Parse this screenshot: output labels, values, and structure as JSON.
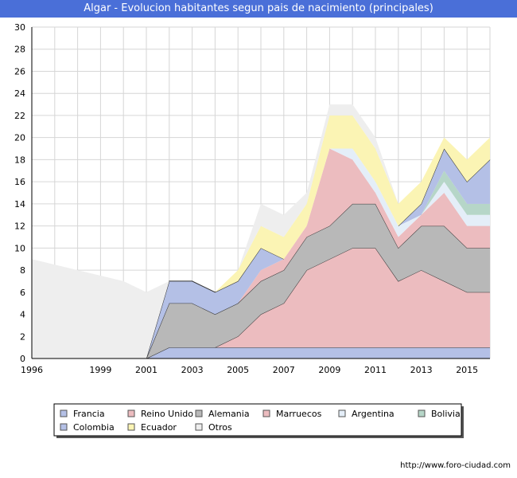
{
  "title": "Algar - Evolucion habitantes segun pais de nacimiento (principales)",
  "source": "http://www.foro-ciudad.com",
  "chart_data": {
    "type": "area",
    "stacked": true,
    "x": [
      1996,
      1998,
      2000,
      2001,
      2002,
      2003,
      2004,
      2005,
      2006,
      2007,
      2008,
      2009,
      2010,
      2011,
      2012,
      2013,
      2014,
      2015,
      2016
    ],
    "xticks": [
      1996,
      1999,
      2001,
      2003,
      2005,
      2007,
      2009,
      2011,
      2013,
      2015
    ],
    "ylim": [
      0,
      30
    ],
    "yticks": [
      0,
      2,
      4,
      6,
      8,
      10,
      12,
      14,
      16,
      18,
      20,
      22,
      24,
      26,
      28,
      30
    ],
    "grid": true,
    "legend_position": "bottom",
    "series": [
      {
        "name": "Francia",
        "color": "#b4c0e6",
        "values": [
          0,
          0,
          0,
          0,
          1,
          1,
          1,
          1,
          1,
          1,
          1,
          1,
          1,
          1,
          1,
          1,
          1,
          1,
          1
        ]
      },
      {
        "name": "Reino Unido",
        "color": "#ecbcbf",
        "values": [
          0,
          0,
          0,
          0,
          0,
          0,
          0,
          1,
          3,
          4,
          7,
          8,
          9,
          9,
          6,
          7,
          6,
          5,
          5
        ]
      },
      {
        "name": "Alemania",
        "color": "#b8b8b8",
        "values": [
          0,
          0,
          0,
          0,
          4,
          4,
          3,
          3,
          3,
          3,
          3,
          3,
          4,
          4,
          3,
          4,
          5,
          4,
          4
        ]
      },
      {
        "name": "Marruecos",
        "color": "#ecbcbf",
        "values": [
          0,
          0,
          0,
          0,
          0,
          0,
          0,
          0,
          1,
          1,
          1,
          7,
          4,
          1,
          1,
          1,
          3,
          2,
          2
        ]
      },
      {
        "name": "Argentina",
        "color": "#e4eef8",
        "values": [
          0,
          0,
          0,
          0,
          0,
          0,
          0,
          0,
          0,
          0,
          0,
          0,
          1,
          1,
          1,
          0,
          1,
          1,
          1
        ]
      },
      {
        "name": "Bolivia",
        "color": "#b6d6c8",
        "values": [
          0,
          0,
          0,
          0,
          0,
          0,
          0,
          0,
          0,
          0,
          0,
          0,
          0,
          0,
          0,
          0,
          1,
          1,
          1
        ]
      },
      {
        "name": "Colombia",
        "color": "#b4c0e6",
        "values": [
          0,
          0,
          0,
          0,
          2,
          2,
          2,
          2,
          2,
          0,
          0,
          0,
          0,
          0,
          0,
          1,
          2,
          2,
          4
        ]
      },
      {
        "name": "Ecuador",
        "color": "#fbf4b4",
        "values": [
          0,
          0,
          0,
          0,
          0,
          0,
          0,
          1,
          2,
          2,
          2,
          3,
          3,
          3,
          2,
          2,
          1,
          2,
          2
        ]
      },
      {
        "name": "Otros",
        "color": "#eeeeee",
        "values": [
          9,
          8,
          7,
          6,
          0,
          0,
          0,
          0,
          2,
          2,
          1,
          1,
          1,
          1,
          0,
          0,
          0,
          0,
          0
        ]
      }
    ]
  }
}
